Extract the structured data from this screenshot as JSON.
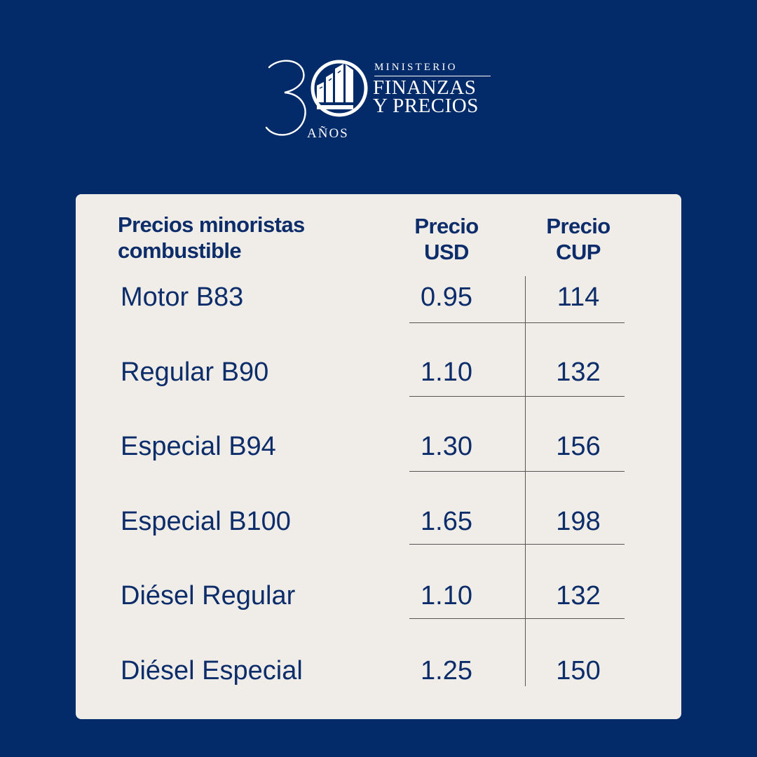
{
  "logo": {
    "number": "30",
    "anos": "AÑOS",
    "line1": "MINISTERIO",
    "line2": "FINANZAS",
    "line3": "Y PRECIOS"
  },
  "table": {
    "header": {
      "title": "Precios minoristas combustible",
      "usd": "Precio USD",
      "cup": "Precio CUP"
    },
    "rows": [
      {
        "name": "Motor B83",
        "usd": "0.95",
        "cup": "114"
      },
      {
        "name": "Regular B90",
        "usd": "1.10",
        "cup": "132"
      },
      {
        "name": "Especial B94",
        "usd": "1.30",
        "cup": "156"
      },
      {
        "name": "Especial B100",
        "usd": "1.65",
        "cup": "198"
      },
      {
        "name": "Diésel Regular",
        "usd": "1.10",
        "cup": "132"
      },
      {
        "name": "Diésel Especial",
        "usd": "1.25",
        "cup": "150"
      }
    ]
  },
  "colors": {
    "background": "#032a69",
    "card": "#f0ede8",
    "text": "#0c2d6a"
  }
}
